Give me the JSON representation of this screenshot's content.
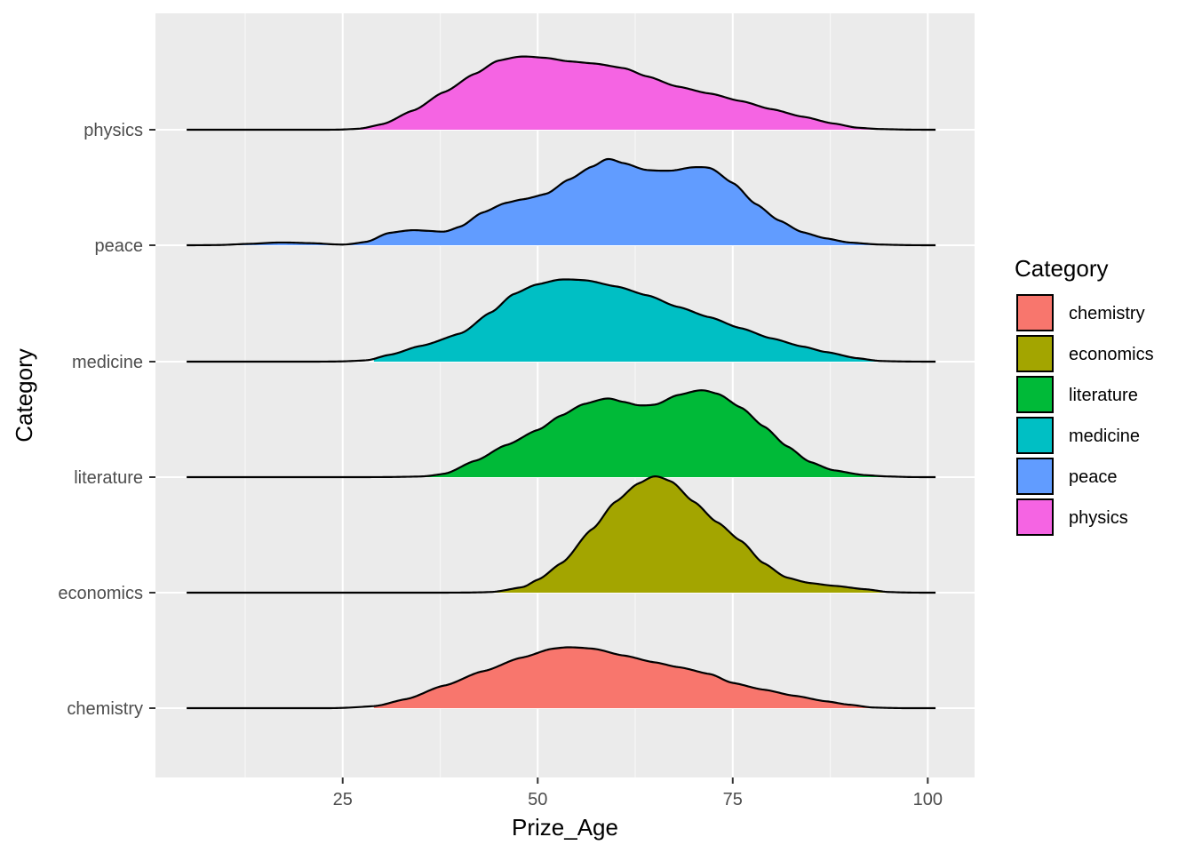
{
  "chart_data": {
    "type": "area",
    "subtype": "ridgeline",
    "xlabel": "Prize_Age",
    "ylabel": "Category",
    "xlim": [
      1,
      106
    ],
    "x_ticks": [
      25,
      50,
      75,
      100
    ],
    "categories": [
      "chemistry",
      "economics",
      "literature",
      "medicine",
      "peace",
      "physics"
    ],
    "legend": {
      "title": "Category",
      "position": "right"
    },
    "grid": true,
    "series": [
      {
        "name": "chemistry",
        "color": "#F8766D",
        "line_range": [
          5,
          101
        ],
        "fill_range": [
          29,
          97
        ],
        "points": [
          [
            5,
            0
          ],
          [
            20,
            0
          ],
          [
            24,
            0.001
          ],
          [
            29,
            0.03
          ],
          [
            33,
            0.13
          ],
          [
            38,
            0.33
          ],
          [
            43,
            0.54
          ],
          [
            48,
            0.74
          ],
          [
            52,
            0.87
          ],
          [
            54,
            0.89
          ],
          [
            57,
            0.87
          ],
          [
            61,
            0.77
          ],
          [
            65,
            0.67
          ],
          [
            68,
            0.6
          ],
          [
            72,
            0.5
          ],
          [
            75,
            0.37
          ],
          [
            79,
            0.27
          ],
          [
            83,
            0.18
          ],
          [
            87,
            0.1
          ],
          [
            90,
            0.05
          ],
          [
            93,
            0.01
          ],
          [
            97,
            0.0
          ],
          [
            101,
            0
          ]
        ]
      },
      {
        "name": "economics",
        "color": "#A3A500",
        "line_range": [
          5,
          101
        ],
        "fill_range": [
          29,
          101
        ],
        "points": [
          [
            5,
            0
          ],
          [
            35,
            0
          ],
          [
            40,
            0.001
          ],
          [
            44,
            0.01
          ],
          [
            48,
            0.08
          ],
          [
            50,
            0.19
          ],
          [
            53,
            0.43
          ],
          [
            57,
            0.93
          ],
          [
            60,
            1.33
          ],
          [
            63,
            1.6
          ],
          [
            65,
            1.7
          ],
          [
            67,
            1.63
          ],
          [
            70,
            1.33
          ],
          [
            73,
            1.03
          ],
          [
            76,
            0.76
          ],
          [
            79,
            0.43
          ],
          [
            82,
            0.22
          ],
          [
            85,
            0.14
          ],
          [
            88,
            0.1
          ],
          [
            92,
            0.05
          ],
          [
            95,
            0.01
          ],
          [
            98,
            0.001
          ],
          [
            101,
            0
          ]
        ]
      },
      {
        "name": "literature",
        "color": "#00BA38",
        "line_range": [
          5,
          101
        ],
        "fill_range": [
          29,
          97
        ],
        "points": [
          [
            5,
            0
          ],
          [
            25,
            0
          ],
          [
            30,
            0.001
          ],
          [
            35,
            0.01
          ],
          [
            38,
            0.05
          ],
          [
            42,
            0.24
          ],
          [
            46,
            0.47
          ],
          [
            50,
            0.69
          ],
          [
            53,
            0.9
          ],
          [
            56,
            1.07
          ],
          [
            59,
            1.15
          ],
          [
            61,
            1.1
          ],
          [
            63,
            1.05
          ],
          [
            65,
            1.06
          ],
          [
            68,
            1.2
          ],
          [
            71,
            1.27
          ],
          [
            73,
            1.22
          ],
          [
            76,
            1.02
          ],
          [
            79,
            0.74
          ],
          [
            82,
            0.45
          ],
          [
            85,
            0.22
          ],
          [
            88,
            0.1
          ],
          [
            92,
            0.03
          ],
          [
            95,
            0.01
          ],
          [
            98,
            0.001
          ],
          [
            101,
            0
          ]
        ]
      },
      {
        "name": "medicine",
        "color": "#00BFC4",
        "line_range": [
          5,
          101
        ],
        "fill_range": [
          29,
          97
        ],
        "points": [
          [
            5,
            0
          ],
          [
            20,
            0
          ],
          [
            24,
            0.002
          ],
          [
            28,
            0.02
          ],
          [
            31,
            0.1
          ],
          [
            35,
            0.23
          ],
          [
            40,
            0.41
          ],
          [
            44,
            0.72
          ],
          [
            47,
            0.99
          ],
          [
            50,
            1.13
          ],
          [
            53,
            1.2
          ],
          [
            56,
            1.19
          ],
          [
            60,
            1.1
          ],
          [
            64,
            0.97
          ],
          [
            68,
            0.8
          ],
          [
            72,
            0.65
          ],
          [
            76,
            0.49
          ],
          [
            80,
            0.34
          ],
          [
            84,
            0.22
          ],
          [
            87,
            0.14
          ],
          [
            91,
            0.05
          ],
          [
            94,
            0.01
          ],
          [
            98,
            0.001
          ],
          [
            101,
            0
          ]
        ]
      },
      {
        "name": "peace",
        "color": "#619CFF",
        "line_range": [
          5,
          101
        ],
        "fill_range": [
          11,
          97
        ],
        "points": [
          [
            5,
            0
          ],
          [
            9,
            0.003
          ],
          [
            13,
            0.02
          ],
          [
            17,
            0.04
          ],
          [
            21,
            0.03
          ],
          [
            25,
            0.01
          ],
          [
            28,
            0.05
          ],
          [
            31,
            0.18
          ],
          [
            34,
            0.22
          ],
          [
            36,
            0.21
          ],
          [
            38,
            0.2
          ],
          [
            40,
            0.27
          ],
          [
            43,
            0.48
          ],
          [
            46,
            0.62
          ],
          [
            48,
            0.67
          ],
          [
            51,
            0.75
          ],
          [
            54,
            0.96
          ],
          [
            57,
            1.15
          ],
          [
            59,
            1.26
          ],
          [
            61,
            1.2
          ],
          [
            64,
            1.1
          ],
          [
            67,
            1.09
          ],
          [
            70,
            1.14
          ],
          [
            72,
            1.13
          ],
          [
            75,
            0.91
          ],
          [
            78,
            0.6
          ],
          [
            81,
            0.36
          ],
          [
            84,
            0.19
          ],
          [
            87,
            0.1
          ],
          [
            90,
            0.04
          ],
          [
            94,
            0.01
          ],
          [
            98,
            0.001
          ],
          [
            101,
            0
          ]
        ]
      },
      {
        "name": "physics",
        "color": "#F564E3",
        "line_range": [
          5,
          101
        ],
        "fill_range": [
          23,
          97
        ],
        "points": [
          [
            5,
            0
          ],
          [
            20,
            0
          ],
          [
            24,
            0.001
          ],
          [
            27,
            0.015
          ],
          [
            30,
            0.08
          ],
          [
            34,
            0.28
          ],
          [
            38,
            0.55
          ],
          [
            42,
            0.82
          ],
          [
            45,
            1.01
          ],
          [
            48,
            1.07
          ],
          [
            51,
            1.05
          ],
          [
            54,
            1.0
          ],
          [
            57,
            0.97
          ],
          [
            61,
            0.9
          ],
          [
            64,
            0.78
          ],
          [
            68,
            0.63
          ],
          [
            72,
            0.53
          ],
          [
            76,
            0.42
          ],
          [
            80,
            0.3
          ],
          [
            84,
            0.19
          ],
          [
            88,
            0.09
          ],
          [
            91,
            0.03
          ],
          [
            94,
            0.01
          ],
          [
            98,
            0.001
          ],
          [
            101,
            0
          ]
        ]
      }
    ]
  }
}
